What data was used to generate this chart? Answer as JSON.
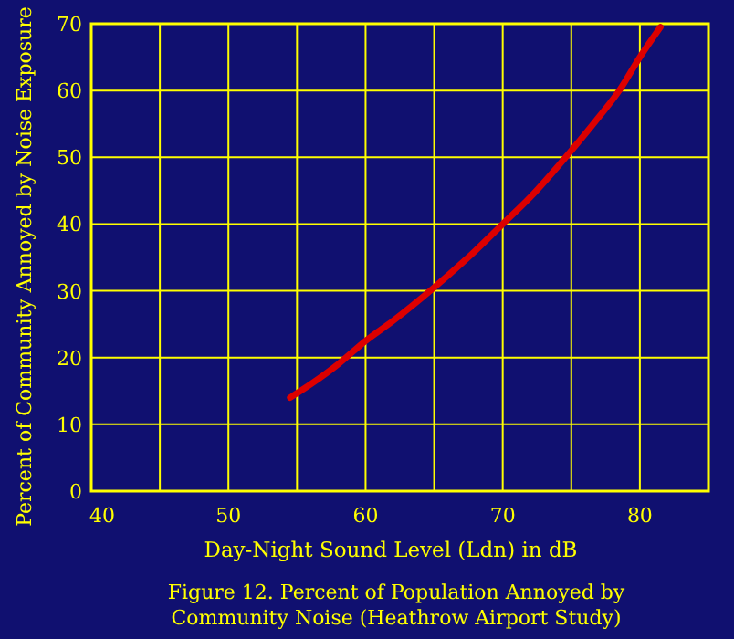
{
  "chart_data": {
    "type": "line",
    "xlabel": "Day-Night Sound Level (Ldn) in dB",
    "ylabel": "Percent of Community Annoyed by Noise Exposure",
    "annotations": [
      "Figure 12. Percent of Population Annoyed by\nCommunity Noise (Heathrow Airport Study)"
    ],
    "xlim": [
      40,
      85
    ],
    "xticks": [
      40,
      {
        "value": 45,
        "label": null
      },
      50,
      {
        "value": 55,
        "label": null
      },
      60,
      {
        "value": 65,
        "label": null
      },
      70,
      {
        "value": 75,
        "label": null
      },
      80
    ],
    "ylim": [
      0,
      70
    ],
    "yticks": [
      0,
      10,
      20,
      30,
      40,
      50,
      60,
      70
    ],
    "grid": true,
    "marker": "none",
    "line_style": "solid",
    "series": [
      {
        "color": "#dd0000",
        "x": [
          54.5,
          56,
          58,
          60,
          62,
          65,
          68,
          70,
          72,
          75,
          77,
          78.5,
          80,
          81.5
        ],
        "values": [
          14,
          16,
          19,
          22.5,
          25.5,
          30.5,
          36,
          40,
          44,
          51,
          56,
          60,
          65,
          69.5
        ]
      }
    ]
  }
}
